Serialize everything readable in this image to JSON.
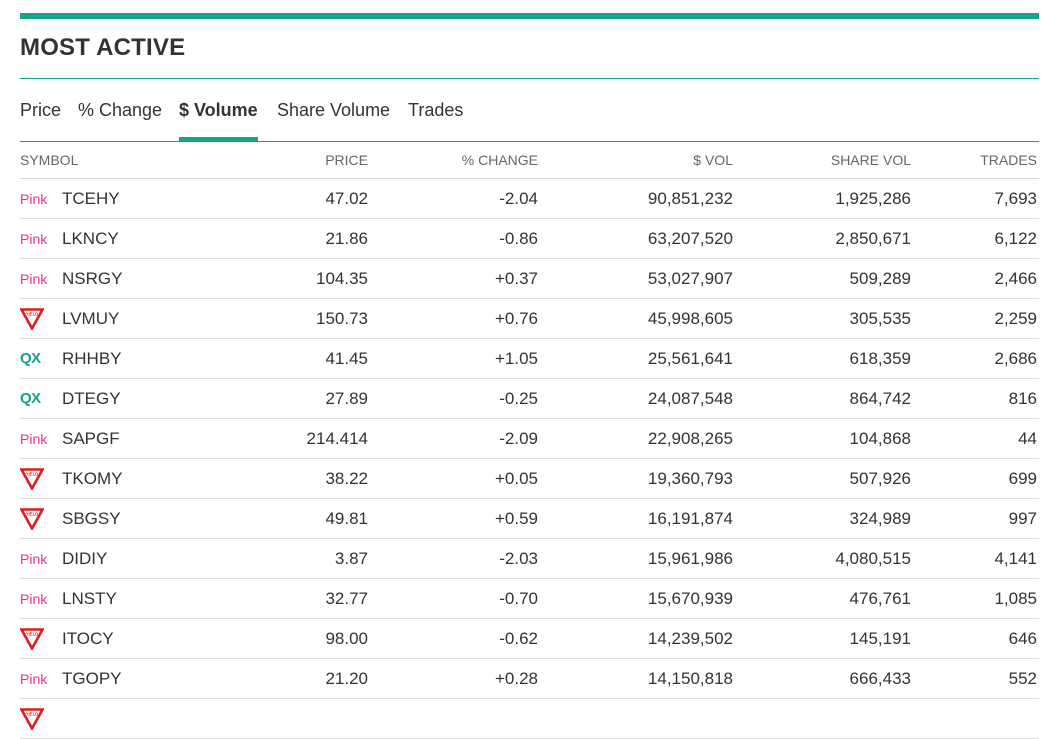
{
  "title": "MOST ACTIVE",
  "colors": {
    "accent": "#14a38b",
    "pink_tier": "#e8338b",
    "yield_sign": "#e11b22"
  },
  "tabs": [
    {
      "label": "Price",
      "active": false
    },
    {
      "label": "% Change",
      "active": false
    },
    {
      "label": "$ Volume",
      "active": true
    },
    {
      "label": "Share Volume",
      "active": false
    },
    {
      "label": "Trades",
      "active": false
    }
  ],
  "table": {
    "columns": [
      "SYMBOL",
      "PRICE",
      "% CHANGE",
      "$ VOL",
      "SHARE VOL",
      "TRADES"
    ],
    "rows": [
      {
        "tier": "pink",
        "tier_label": "Pink",
        "symbol": "TCEHY",
        "price": "47.02",
        "change": "-2.04",
        "dollar_vol": "90,851,232",
        "share_vol": "1,925,286",
        "trades": "7,693"
      },
      {
        "tier": "pink",
        "tier_label": "Pink",
        "symbol": "LKNCY",
        "price": "21.86",
        "change": "-0.86",
        "dollar_vol": "63,207,520",
        "share_vol": "2,850,671",
        "trades": "6,122"
      },
      {
        "tier": "pink",
        "tier_label": "Pink",
        "symbol": "NSRGY",
        "price": "104.35",
        "change": "+0.37",
        "dollar_vol": "53,027,907",
        "share_vol": "509,289",
        "trades": "2,466"
      },
      {
        "tier": "yield",
        "tier_label": "YIELD",
        "symbol": "LVMUY",
        "price": "150.73",
        "change": "+0.76",
        "dollar_vol": "45,998,605",
        "share_vol": "305,535",
        "trades": "2,259"
      },
      {
        "tier": "qx",
        "tier_label": "QX",
        "symbol": "RHHBY",
        "price": "41.45",
        "change": "+1.05",
        "dollar_vol": "25,561,641",
        "share_vol": "618,359",
        "trades": "2,686"
      },
      {
        "tier": "qx",
        "tier_label": "QX",
        "symbol": "DTEGY",
        "price": "27.89",
        "change": "-0.25",
        "dollar_vol": "24,087,548",
        "share_vol": "864,742",
        "trades": "816"
      },
      {
        "tier": "pink",
        "tier_label": "Pink",
        "symbol": "SAPGF",
        "price": "214.414",
        "change": "-2.09",
        "dollar_vol": "22,908,265",
        "share_vol": "104,868",
        "trades": "44"
      },
      {
        "tier": "yield",
        "tier_label": "YIELD",
        "symbol": "TKOMY",
        "price": "38.22",
        "change": "+0.05",
        "dollar_vol": "19,360,793",
        "share_vol": "507,926",
        "trades": "699"
      },
      {
        "tier": "yield",
        "tier_label": "YIELD",
        "symbol": "SBGSY",
        "price": "49.81",
        "change": "+0.59",
        "dollar_vol": "16,191,874",
        "share_vol": "324,989",
        "trades": "997"
      },
      {
        "tier": "pink",
        "tier_label": "Pink",
        "symbol": "DIDIY",
        "price": "3.87",
        "change": "-2.03",
        "dollar_vol": "15,961,986",
        "share_vol": "4,080,515",
        "trades": "4,141"
      },
      {
        "tier": "pink",
        "tier_label": "Pink",
        "symbol": "LNSTY",
        "price": "32.77",
        "change": "-0.70",
        "dollar_vol": "15,670,939",
        "share_vol": "476,761",
        "trades": "1,085"
      },
      {
        "tier": "yield",
        "tier_label": "YIELD",
        "symbol": "ITOCY",
        "price": "98.00",
        "change": "-0.62",
        "dollar_vol": "14,239,502",
        "share_vol": "145,191",
        "trades": "646"
      },
      {
        "tier": "pink",
        "tier_label": "Pink",
        "symbol": "TGOPY",
        "price": "21.20",
        "change": "+0.28",
        "dollar_vol": "14,150,818",
        "share_vol": "666,433",
        "trades": "552"
      },
      {
        "tier": "yield",
        "tier_label": "YIELD",
        "symbol": "",
        "price": "",
        "change": "",
        "dollar_vol": "",
        "share_vol": "",
        "trades": ""
      }
    ]
  }
}
